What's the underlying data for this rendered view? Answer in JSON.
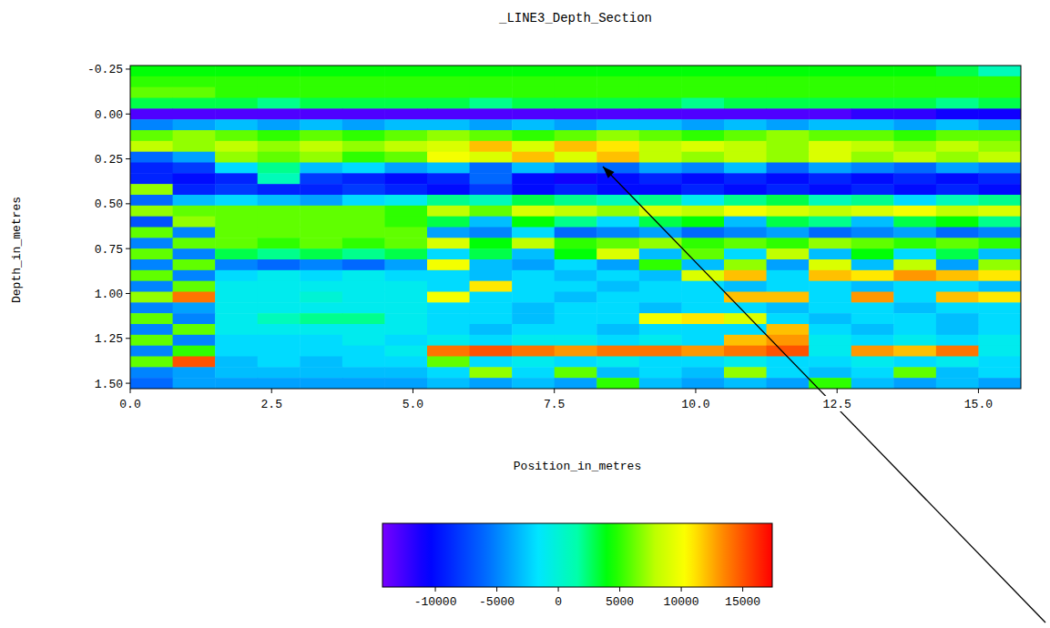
{
  "chart_data": {
    "type": "heatmap",
    "title": "_LINE3_Depth_Section",
    "xlabel": "Position_in_metres",
    "ylabel": "Depth_in_metres",
    "xlim": [
      0,
      15.75
    ],
    "ylim": [
      -0.27,
      1.53
    ],
    "xticks": [
      {
        "value": 0,
        "label": "0.0"
      },
      {
        "value": 2.5,
        "label": "2.5"
      },
      {
        "value": 5,
        "label": "5.0"
      },
      {
        "value": 7.5,
        "label": "7.5"
      },
      {
        "value": 10,
        "label": "10.0"
      },
      {
        "value": 12.5,
        "label": "12.5"
      },
      {
        "value": 15,
        "label": "15.0"
      }
    ],
    "yticks": [
      {
        "value": -0.25,
        "label": "-0.25"
      },
      {
        "value": 0,
        "label": "0.00"
      },
      {
        "value": 0.25,
        "label": "0.25"
      },
      {
        "value": 0.5,
        "label": "0.50"
      },
      {
        "value": 0.75,
        "label": "0.75"
      },
      {
        "value": 1,
        "label": "1.00"
      },
      {
        "value": 1.25,
        "label": "1.25"
      },
      {
        "value": 1.5,
        "label": "1.50"
      }
    ],
    "grid": false,
    "x": [
      0.375,
      1.125,
      1.875,
      2.625,
      3.375,
      4.125,
      4.875,
      5.625,
      6.375,
      7.125,
      7.875,
      8.625,
      9.375,
      10.125,
      10.875,
      11.625,
      12.375,
      13.125,
      13.875,
      14.625,
      15.375
    ],
    "y": [
      -0.24,
      -0.18,
      -0.12,
      -0.06,
      0,
      0.06,
      0.12,
      0.18,
      0.24,
      0.3,
      0.36,
      0.42,
      0.48,
      0.54,
      0.6,
      0.66,
      0.72,
      0.78,
      0.84,
      0.9,
      0.96,
      1.02,
      1.08,
      1.14,
      1.2,
      1.26,
      1.32,
      1.38,
      1.44,
      1.5
    ],
    "cells": [
      [
        4000,
        4000,
        4000,
        4000,
        4000,
        4000,
        4000,
        4000,
        4000,
        4000,
        4000,
        4000,
        4000,
        4000,
        4000,
        4000,
        4000,
        4000,
        4000,
        3000,
        1000
      ],
      [
        5000,
        5000,
        5000,
        5000,
        5000,
        5000,
        5000,
        5000,
        5000,
        5000,
        5000,
        5000,
        5000,
        5000,
        5000,
        5000,
        5000,
        5000,
        5000,
        5000,
        5000
      ],
      [
        6000,
        6000,
        5000,
        5000,
        5000,
        5000,
        5000,
        5000,
        5000,
        5000,
        5000,
        5000,
        5000,
        5000,
        5000,
        5000,
        5000,
        5000,
        5000,
        5000,
        5000
      ],
      [
        3000,
        3000,
        3000,
        2000,
        3000,
        3000,
        3000,
        3000,
        2000,
        3000,
        3000,
        3000,
        3000,
        2000,
        3000,
        3000,
        3000,
        3000,
        3000,
        2000,
        3000
      ],
      [
        -13000,
        -13000,
        -13000,
        -13000,
        -13000,
        -13000,
        -13000,
        -13000,
        -13000,
        -13000,
        -13000,
        -13000,
        -13000,
        -13000,
        -13000,
        -13000,
        -13000,
        -12000,
        -12000,
        -11000,
        -11000
      ],
      [
        -5000,
        -4000,
        -3000,
        -4000,
        -3000,
        -4000,
        -3000,
        -3000,
        -4000,
        -3000,
        -4000,
        -3000,
        -3000,
        -4000,
        -3000,
        -4000,
        -3000,
        -3000,
        -4000,
        -3000,
        -4000
      ],
      [
        6000,
        7000,
        6000,
        5000,
        6000,
        5000,
        6000,
        7000,
        6000,
        5000,
        6000,
        7000,
        6000,
        5000,
        6000,
        7000,
        6000,
        6000,
        5000,
        6000,
        6000
      ],
      [
        8000,
        7000,
        8000,
        7000,
        8000,
        7000,
        8000,
        9000,
        12000,
        9000,
        12000,
        11000,
        8000,
        9000,
        8000,
        7000,
        9000,
        8000,
        7000,
        8000,
        7000
      ],
      [
        -6000,
        -4000,
        7000,
        6000,
        7000,
        5000,
        6000,
        10000,
        9000,
        12000,
        9000,
        12000,
        8000,
        7000,
        8000,
        7000,
        9000,
        7000,
        8000,
        7000,
        8000
      ],
      [
        -9000,
        -8000,
        -2000,
        2000,
        -3000,
        -2000,
        -4000,
        -3000,
        -6000,
        -3000,
        -5000,
        -6000,
        -4000,
        -5000,
        -3000,
        -6000,
        -4000,
        -5000,
        -6000,
        -4000,
        -5000
      ],
      [
        -9000,
        -10000,
        -9000,
        1000,
        -8000,
        -9000,
        -10000,
        -9000,
        -6000,
        -10000,
        -11000,
        -10000,
        -9000,
        -10000,
        -9000,
        -10000,
        -9000,
        -10000,
        -9000,
        -10000,
        -9000
      ],
      [
        7000,
        -9000,
        -8000,
        -9000,
        -9000,
        -8000,
        -9000,
        -10000,
        -8000,
        -10000,
        -9000,
        -10000,
        -10000,
        -9000,
        -10000,
        -9000,
        -10000,
        -9000,
        -10000,
        -9000,
        -10000
      ],
      [
        -6000,
        -3000,
        -2000,
        -3000,
        -4000,
        -2000,
        -1000,
        2000,
        1000,
        3000,
        2000,
        1000,
        2000,
        -1000,
        2000,
        3000,
        1000,
        2000,
        -2000,
        1000,
        2000
      ],
      [
        7000,
        6000,
        6000,
        6000,
        6000,
        6000,
        5000,
        8000,
        6000,
        9000,
        8000,
        7000,
        9000,
        8000,
        10000,
        9000,
        8000,
        9000,
        10000,
        8000,
        9000
      ],
      [
        -7000,
        7000,
        6000,
        6000,
        6000,
        6000,
        5000,
        3000,
        -3000,
        4000,
        2000,
        -2000,
        3000,
        4000,
        -3000,
        3000,
        2000,
        -3000,
        3000,
        4000,
        2000
      ],
      [
        6000,
        -5000,
        6000,
        6000,
        6000,
        6000,
        6000,
        -4000,
        -5000,
        -2000,
        -6000,
        -5000,
        -4000,
        -6000,
        -5000,
        -4000,
        -6000,
        -5000,
        -4000,
        -6000,
        -5000
      ],
      [
        -5000,
        6000,
        6000,
        5000,
        6000,
        5000,
        6000,
        9000,
        4000,
        8000,
        5000,
        6000,
        7000,
        5000,
        6000,
        5000,
        7000,
        6000,
        5000,
        6000,
        5000
      ],
      [
        6000,
        -5000,
        3000,
        2000,
        3000,
        2000,
        3000,
        -2000,
        3000,
        -3000,
        4000,
        9000,
        -3000,
        6000,
        -2000,
        8000,
        -3000,
        4000,
        -2000,
        3000,
        -3000
      ],
      [
        -5000,
        6000,
        -5000,
        -6000,
        -5000,
        -6000,
        -4000,
        10000,
        -3000,
        -4000,
        -2000,
        -4000,
        5000,
        -3000,
        7000,
        -4000,
        9000,
        -3000,
        8000,
        -4000,
        7000
      ],
      [
        6000,
        -5000,
        -2000,
        -1000,
        -2000,
        -1000,
        -2000,
        -2000,
        -3000,
        -2000,
        -3000,
        -2000,
        -3000,
        9000,
        12000,
        -2000,
        12000,
        11000,
        13000,
        12000,
        11000
      ],
      [
        -5000,
        6000,
        -1000,
        -1000,
        -1000,
        -1000,
        -1000,
        -2000,
        11000,
        -2000,
        -2000,
        -3000,
        -2000,
        -2000,
        -3000,
        -2000,
        -2000,
        -3000,
        -2000,
        -2000,
        -3000
      ],
      [
        7000,
        14000,
        -1000,
        -1000,
        0,
        -1000,
        -1000,
        10000,
        -2000,
        -2000,
        -3000,
        -2000,
        -2000,
        -2000,
        12000,
        12000,
        -2000,
        13000,
        -2000,
        12000,
        11000
      ],
      [
        -5000,
        -4000,
        -1000,
        -1000,
        -1000,
        -1000,
        -1000,
        -2000,
        -2000,
        -3000,
        -2000,
        -2000,
        -3000,
        -2000,
        -2000,
        -3000,
        -2000,
        -2000,
        -3000,
        -2000,
        -2000
      ],
      [
        6000,
        -5000,
        -1000,
        1000,
        2000,
        2000,
        -1000,
        -2000,
        -2000,
        -3000,
        -2000,
        -2000,
        10000,
        11000,
        9000,
        -2000,
        -3000,
        -2000,
        -2000,
        -3000,
        -2000
      ],
      [
        -5000,
        6000,
        -1000,
        -1000,
        -1000,
        -1000,
        -1000,
        -2000,
        -3000,
        -2000,
        -2000,
        -3000,
        -2000,
        -2000,
        -2000,
        12000,
        -2000,
        -3000,
        -2000,
        -3000,
        -2000
      ],
      [
        6000,
        -5000,
        -2000,
        -2000,
        -2000,
        -1000,
        -2000,
        -1000,
        -2000,
        -1000,
        -1000,
        -2000,
        -1000,
        -2000,
        12000,
        13000,
        -1000,
        -2000,
        -1000,
        -2000,
        -1000
      ],
      [
        -5000,
        5000,
        -2000,
        -2000,
        -2000,
        -2000,
        -1000,
        14000,
        15000,
        14000,
        13000,
        14000,
        14000,
        13000,
        14000,
        15000,
        -1000,
        13000,
        12000,
        14000,
        -1000
      ],
      [
        6000,
        15000,
        -3000,
        -2000,
        -3000,
        -2000,
        -2000,
        6000,
        -2000,
        -1000,
        -2000,
        -1000,
        -2000,
        -2000,
        -1000,
        -2000,
        -2000,
        -1000,
        -2000,
        -1000,
        -2000
      ],
      [
        -5000,
        -4000,
        -3000,
        -3000,
        -3000,
        -3000,
        -3000,
        -2000,
        7000,
        -2000,
        6000,
        -3000,
        -2000,
        -3000,
        7000,
        -2000,
        -3000,
        -2000,
        6000,
        -3000,
        -2000
      ],
      [
        -6000,
        -4000,
        -4000,
        -4000,
        -4000,
        -4000,
        -4000,
        -3000,
        -4000,
        -3000,
        -4000,
        5000,
        -3000,
        -4000,
        -3000,
        -4000,
        5000,
        -3000,
        -4000,
        -3000,
        -4000
      ]
    ],
    "colorbar": {
      "range": [
        -14300,
        17400
      ],
      "ticks": [
        -10000,
        -5000,
        0,
        5000,
        10000,
        15000
      ]
    }
  }
}
